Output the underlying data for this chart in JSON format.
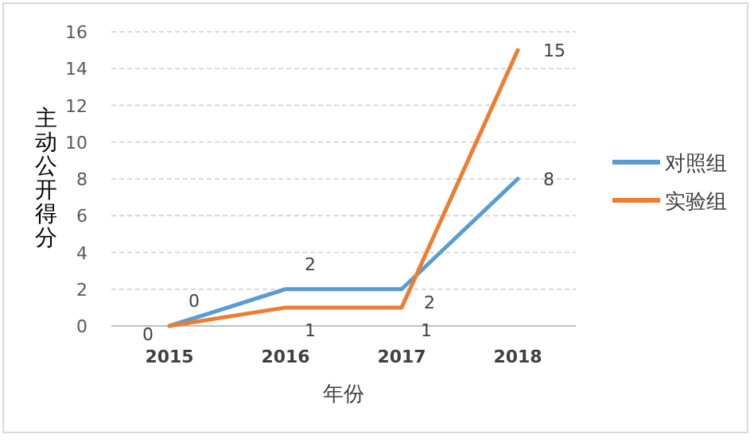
{
  "chart_data": {
    "type": "line",
    "xlabel": "年份",
    "ylabel": "主动公开得分",
    "categories": [
      "2015",
      "2016",
      "2017",
      "2018"
    ],
    "series": [
      {
        "name": "对照组",
        "color": "#5b9bd5",
        "values": [
          0,
          2,
          2,
          8
        ]
      },
      {
        "name": "实验组",
        "color": "#ed7d31",
        "values": [
          0,
          1,
          1,
          15
        ]
      }
    ],
    "ylim": [
      0,
      16
    ],
    "yticks": [
      0,
      2,
      4,
      6,
      8,
      10,
      12,
      14,
      16
    ],
    "grid": "y",
    "legend": "right",
    "data_labels": true,
    "marker": "none",
    "line_style": "solid"
  }
}
